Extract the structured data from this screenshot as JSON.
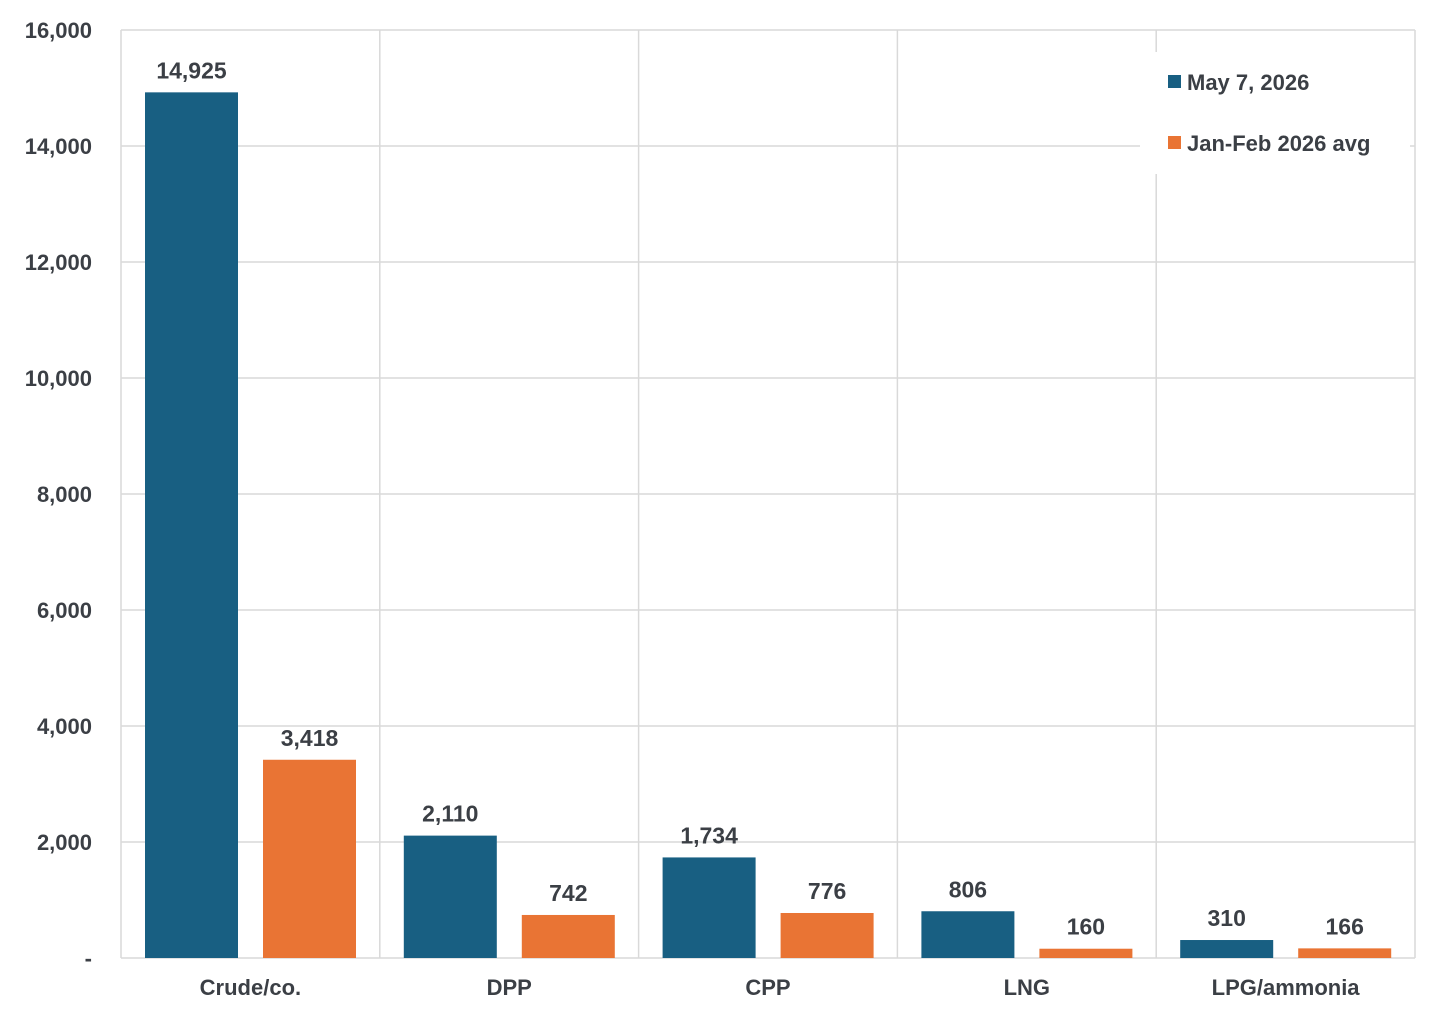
{
  "chart_data": {
    "type": "bar",
    "title": "",
    "xlabel": "",
    "ylabel": "",
    "categories": [
      "Crude/co.",
      "DPP",
      "CPP",
      "LNG",
      "LPG/ammonia"
    ],
    "series": [
      {
        "name": "May 7, 2026",
        "color": "#185f82",
        "values": [
          14925,
          2110,
          1734,
          806,
          310
        ],
        "labels": [
          "14,925",
          "2,110",
          "1,734",
          "806",
          "310"
        ]
      },
      {
        "name": "Jan-Feb 2026 avg",
        "color": "#e97434",
        "values": [
          3418,
          742,
          776,
          160,
          166
        ],
        "labels": [
          "3,418",
          "742",
          "776",
          "160",
          "166"
        ]
      }
    ],
    "ylim": [
      0,
      16000
    ],
    "yticks": [
      0,
      2000,
      4000,
      6000,
      8000,
      10000,
      12000,
      14000,
      16000
    ],
    "ytick_labels": [
      "-",
      "2,000",
      "4,000",
      "6,000",
      "8,000",
      "10,000",
      "12,000",
      "14,000",
      "16,000"
    ],
    "grid": true,
    "legend_position": "top-right"
  }
}
